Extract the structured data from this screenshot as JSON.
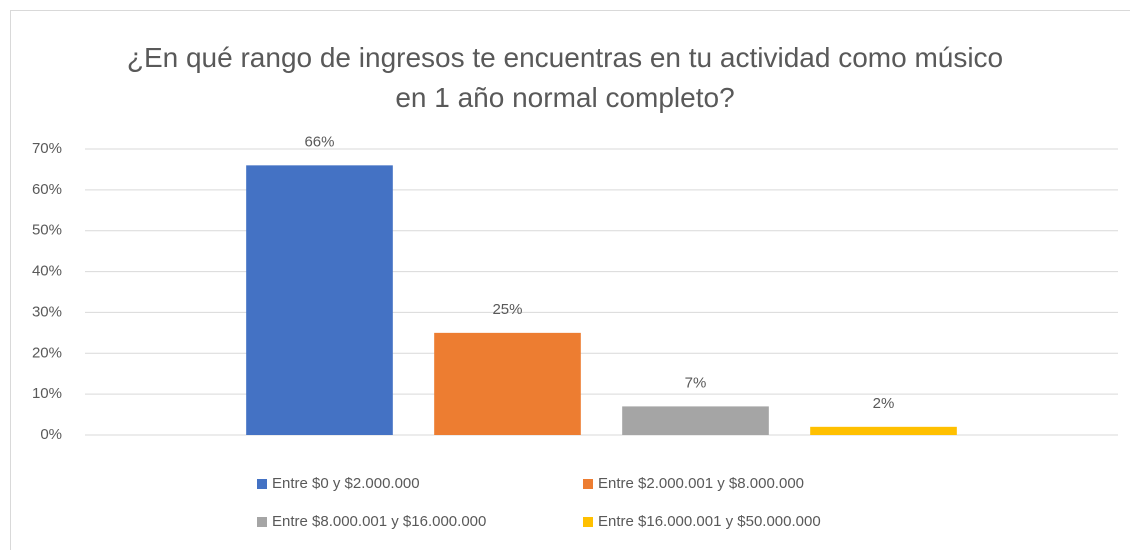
{
  "chart_data": {
    "type": "bar",
    "title": "¿En qué rango de ingresos te encuentras en tu actividad como músico en 1 año normal completo?",
    "categories": [
      null
    ],
    "series": [
      {
        "name": "Entre $0 y $2.000.000",
        "color": "#4472c4",
        "values": [
          66
        ],
        "value_labels": [
          "66%"
        ]
      },
      {
        "name": "Entre $2.000.001 y $8.000.000",
        "color": "#ed7d31",
        "values": [
          25
        ],
        "value_labels": [
          "25%"
        ]
      },
      {
        "name": "Entre $8.000.001 y $16.000.000",
        "color": "#a5a5a5",
        "values": [
          7
        ],
        "value_labels": [
          "7%"
        ]
      },
      {
        "name": "Entre $16.000.001 y $50.000.000",
        "color": "#ffc000",
        "values": [
          2
        ],
        "value_labels": [
          "2%"
        ]
      }
    ],
    "ylim": [
      0,
      70
    ],
    "yticks": [
      {
        "value": 0,
        "label": "0%"
      },
      {
        "value": 10,
        "label": "10%"
      },
      {
        "value": 20,
        "label": "20%"
      },
      {
        "value": 30,
        "label": "30%"
      },
      {
        "value": 40,
        "label": "40%"
      },
      {
        "value": 50,
        "label": "50%"
      },
      {
        "value": 60,
        "label": "60%"
      },
      {
        "value": 70,
        "label": "70%"
      }
    ],
    "grid": true,
    "legend": "bottom"
  }
}
